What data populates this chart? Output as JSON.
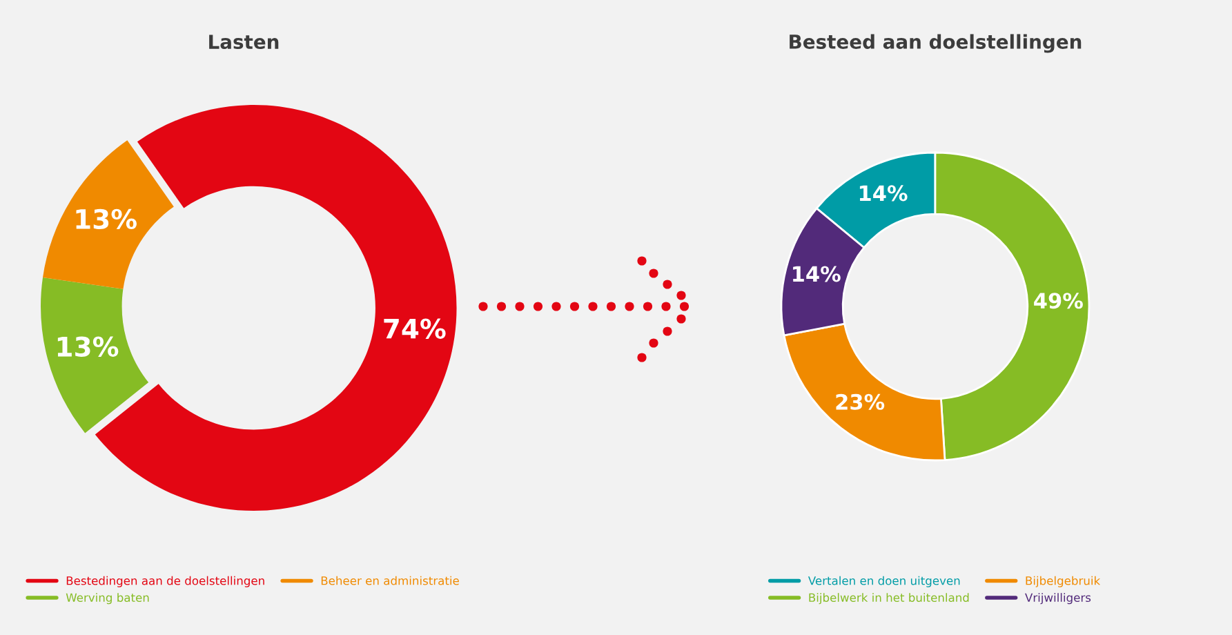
{
  "chart_data": [
    {
      "type": "donut",
      "title": "Lasten",
      "categories": [
        "Bestedingen aan de doelstellingen",
        "Werving baten",
        "Beheer en administratie"
      ],
      "values": [
        74,
        13,
        13
      ],
      "colors": [
        "#e30613",
        "#86bc25",
        "#f08a00"
      ],
      "value_labels": [
        "74%",
        "13%",
        "13%"
      ],
      "legend": "bottom"
    },
    {
      "type": "donut",
      "title": "Besteed aan doelstellingen",
      "categories": [
        "Vertalen en doen uitgeven",
        "Bijbelwerk in het buitenland",
        "Bijbelgebruik",
        "Vrijwilligers"
      ],
      "values": [
        14,
        49,
        23,
        14
      ],
      "colors": [
        "#009ca6",
        "#86bc25",
        "#f08a00",
        "#522a7a"
      ],
      "value_labels": [
        "14%",
        "49%",
        "23%",
        "14%"
      ],
      "legend": "bottom"
    }
  ]
}
